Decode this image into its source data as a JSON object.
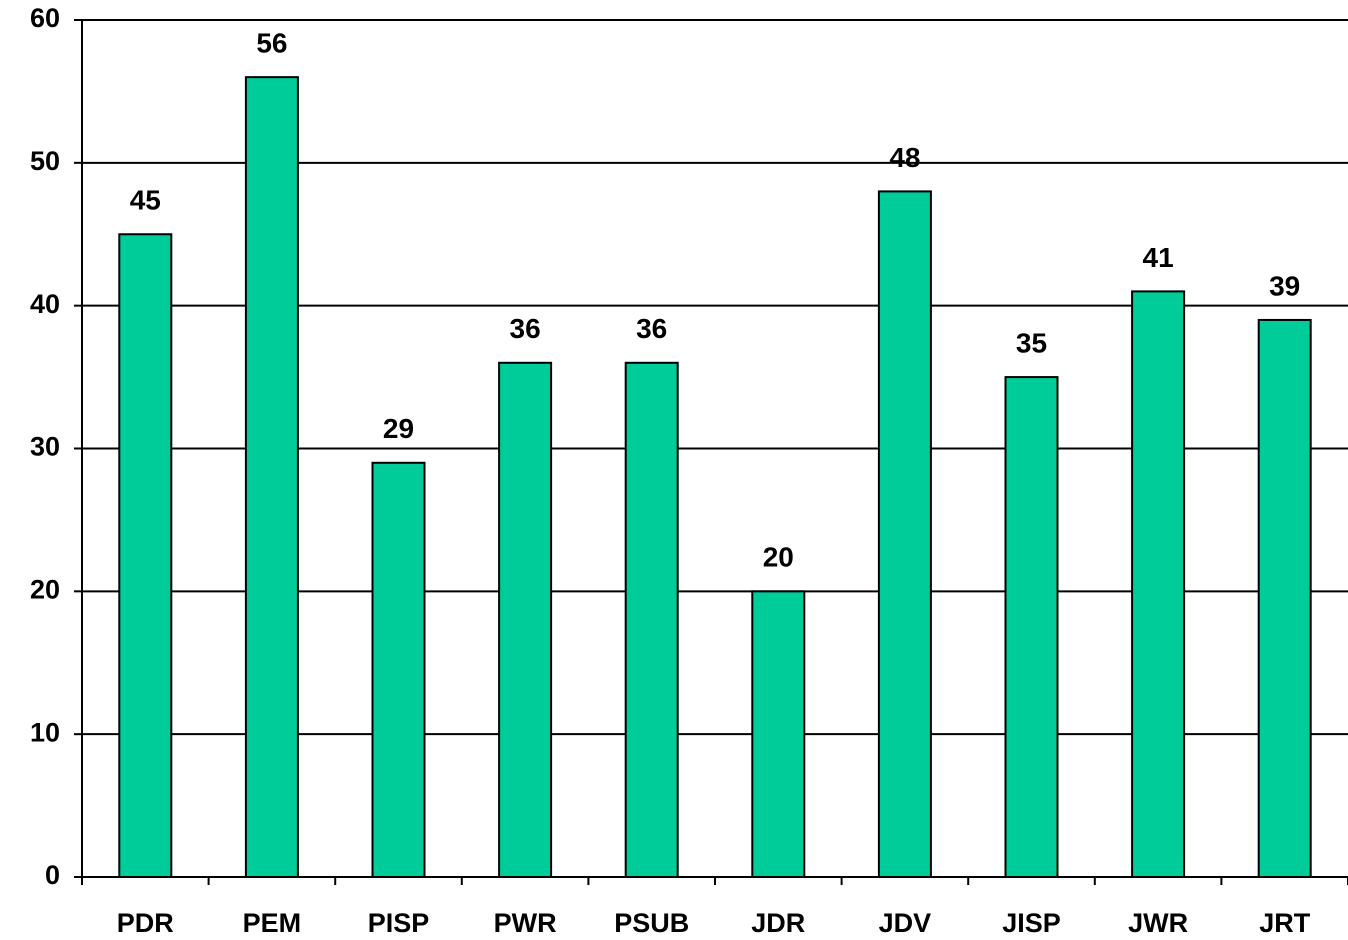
{
  "chart_data": {
    "type": "bar",
    "categories": [
      "PDR",
      "PEM",
      "PISP",
      "PWR",
      "PSUB",
      "JDR",
      "JDV",
      "JISP",
      "JWR",
      "JRT"
    ],
    "values": [
      45,
      56,
      29,
      36,
      36,
      20,
      48,
      35,
      41,
      39
    ],
    "color": "#00cc99",
    "ylim": [
      0,
      60
    ],
    "yticks": [
      0,
      10,
      20,
      30,
      40,
      50,
      60
    ],
    "grid": true
  }
}
